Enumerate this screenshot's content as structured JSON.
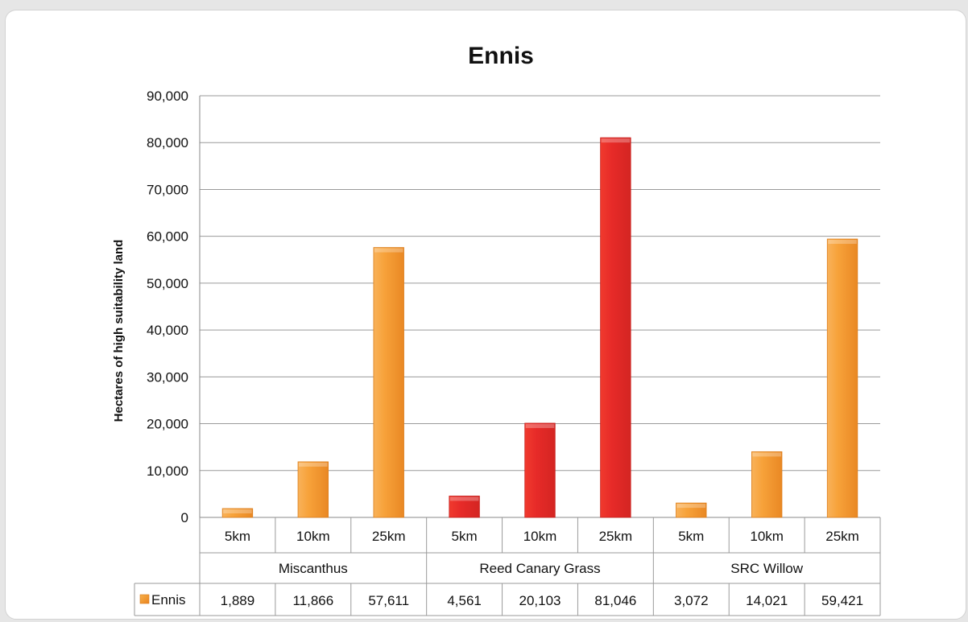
{
  "chart_data": {
    "type": "bar",
    "title": "Ennis",
    "ylabel": "Hectares of high suitability land",
    "xlabel": "",
    "ylim": [
      0,
      90000
    ],
    "yticks": [
      0,
      10000,
      20000,
      30000,
      40000,
      50000,
      60000,
      70000,
      80000,
      90000
    ],
    "ytick_labels": [
      "0",
      "10,000",
      "20,000",
      "30,000",
      "40,000",
      "50,000",
      "60,000",
      "70,000",
      "80,000",
      "90,000"
    ],
    "grid": true,
    "groups": [
      {
        "name": "Miscanthus",
        "color": "#f39b2f",
        "categories": [
          "5km",
          "10km",
          "25km"
        ],
        "values": [
          1889,
          11866,
          57611
        ],
        "value_labels": [
          "1,889",
          "11,866",
          "57,611"
        ]
      },
      {
        "name": "Reed Canary Grass",
        "color": "#e62a28",
        "categories": [
          "5km",
          "10km",
          "25km"
        ],
        "values": [
          4561,
          20103,
          81046
        ],
        "value_labels": [
          "4,561",
          "20,103",
          "81,046"
        ]
      },
      {
        "name": "SRC Willow",
        "color": "#f7a53c",
        "categories": [
          "5km",
          "10km",
          "25km"
        ],
        "values": [
          3072,
          14021,
          59421
        ],
        "value_labels": [
          "3,072",
          "14,021",
          "59,421"
        ]
      }
    ],
    "series": [
      {
        "name": "Ennis",
        "values": [
          1889,
          11866,
          57611,
          4561,
          20103,
          81046,
          3072,
          14021,
          59421
        ]
      }
    ],
    "data_table": true,
    "legend_key_color": "#f39b2f"
  }
}
